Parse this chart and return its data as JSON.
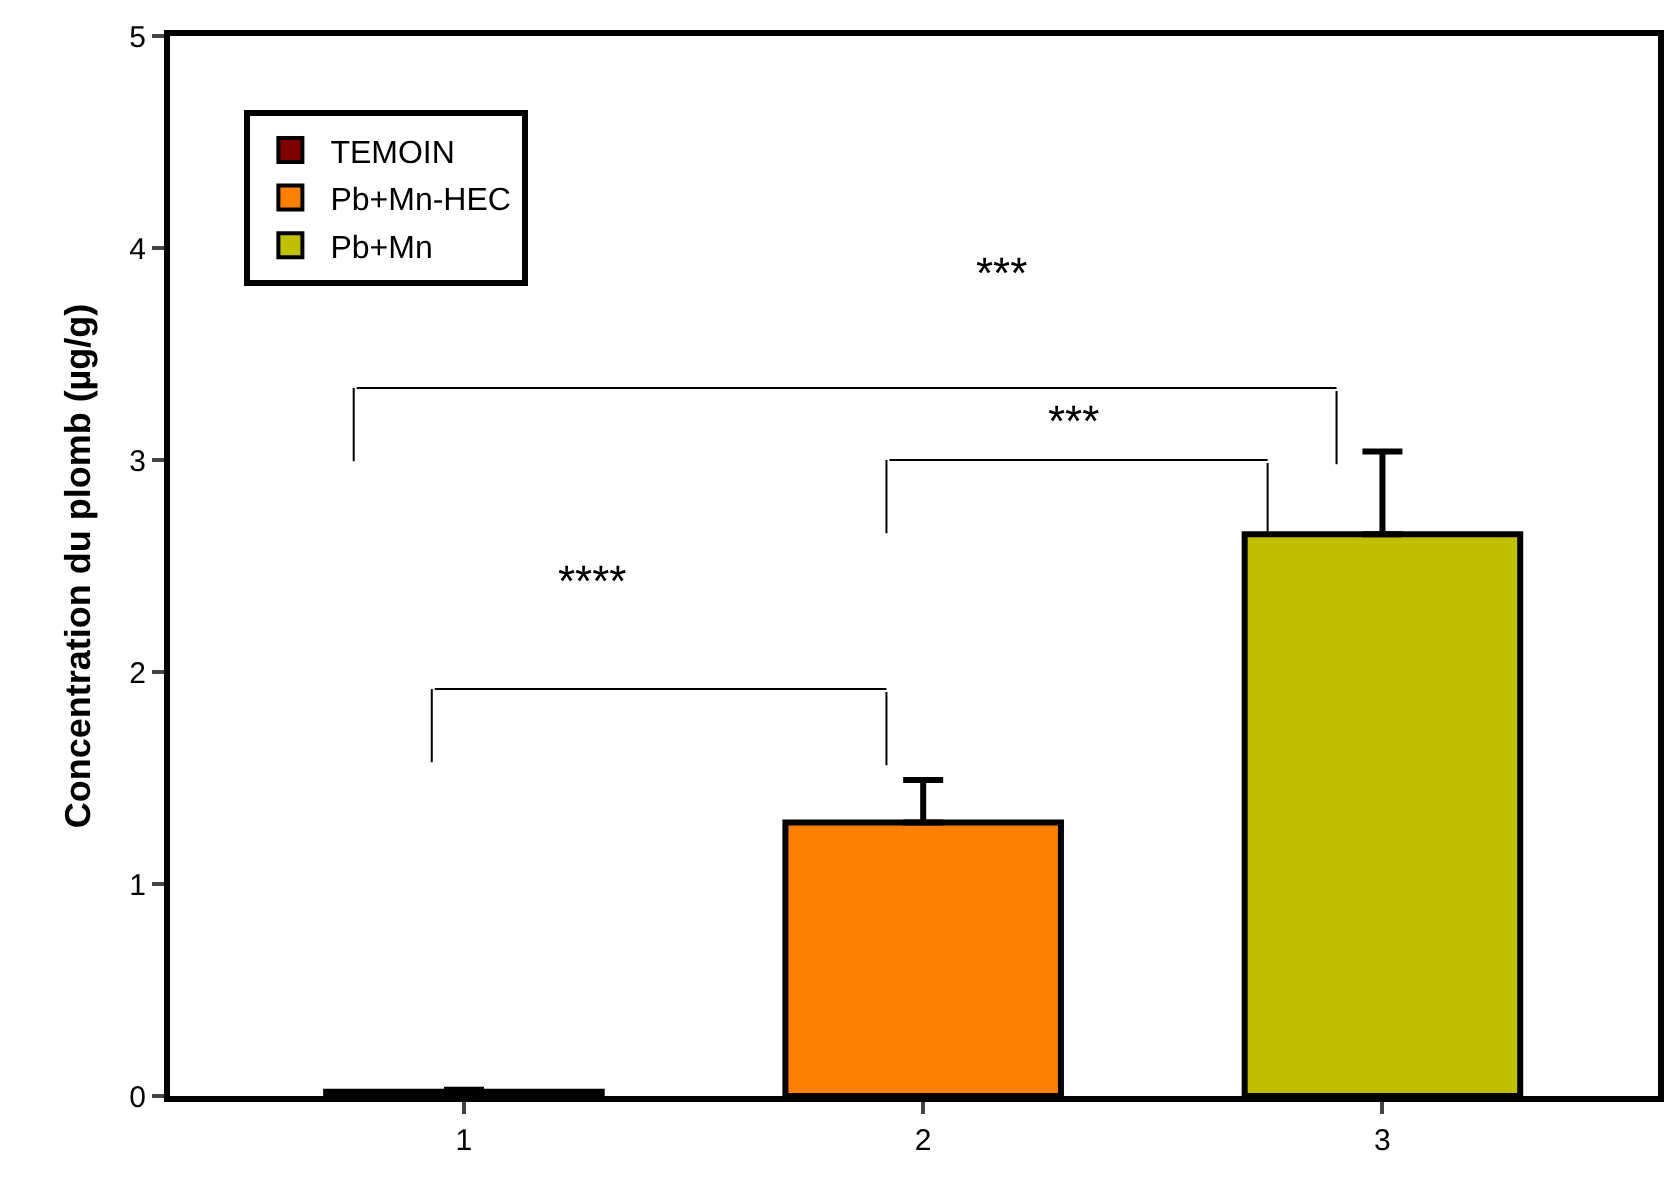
{
  "chart_data": {
    "type": "bar",
    "ylabel": "Concentration du plomb (µg/g)",
    "categories": [
      "1",
      "2",
      "3"
    ],
    "series": [
      {
        "name": "TEMOIN",
        "color": "#800000",
        "values": [
          0.02,
          null,
          null
        ],
        "errors": [
          0.01,
          null,
          null
        ]
      },
      {
        "name": "Pb+Mn-HEC",
        "color": "#ff8000",
        "values": [
          null,
          1.29,
          null
        ],
        "errors": [
          null,
          0.2,
          null
        ]
      },
      {
        "name": "Pb+Mn",
        "color": "#c0c000",
        "values": [
          null,
          null,
          2.65
        ],
        "errors": [
          null,
          null,
          0.39
        ]
      }
    ],
    "ylim": [
      0,
      5
    ],
    "yticks": [
      0,
      1,
      2,
      3,
      4,
      5
    ],
    "legend": "top left",
    "annotations": [
      "****",
      "***",
      "***"
    ]
  }
}
